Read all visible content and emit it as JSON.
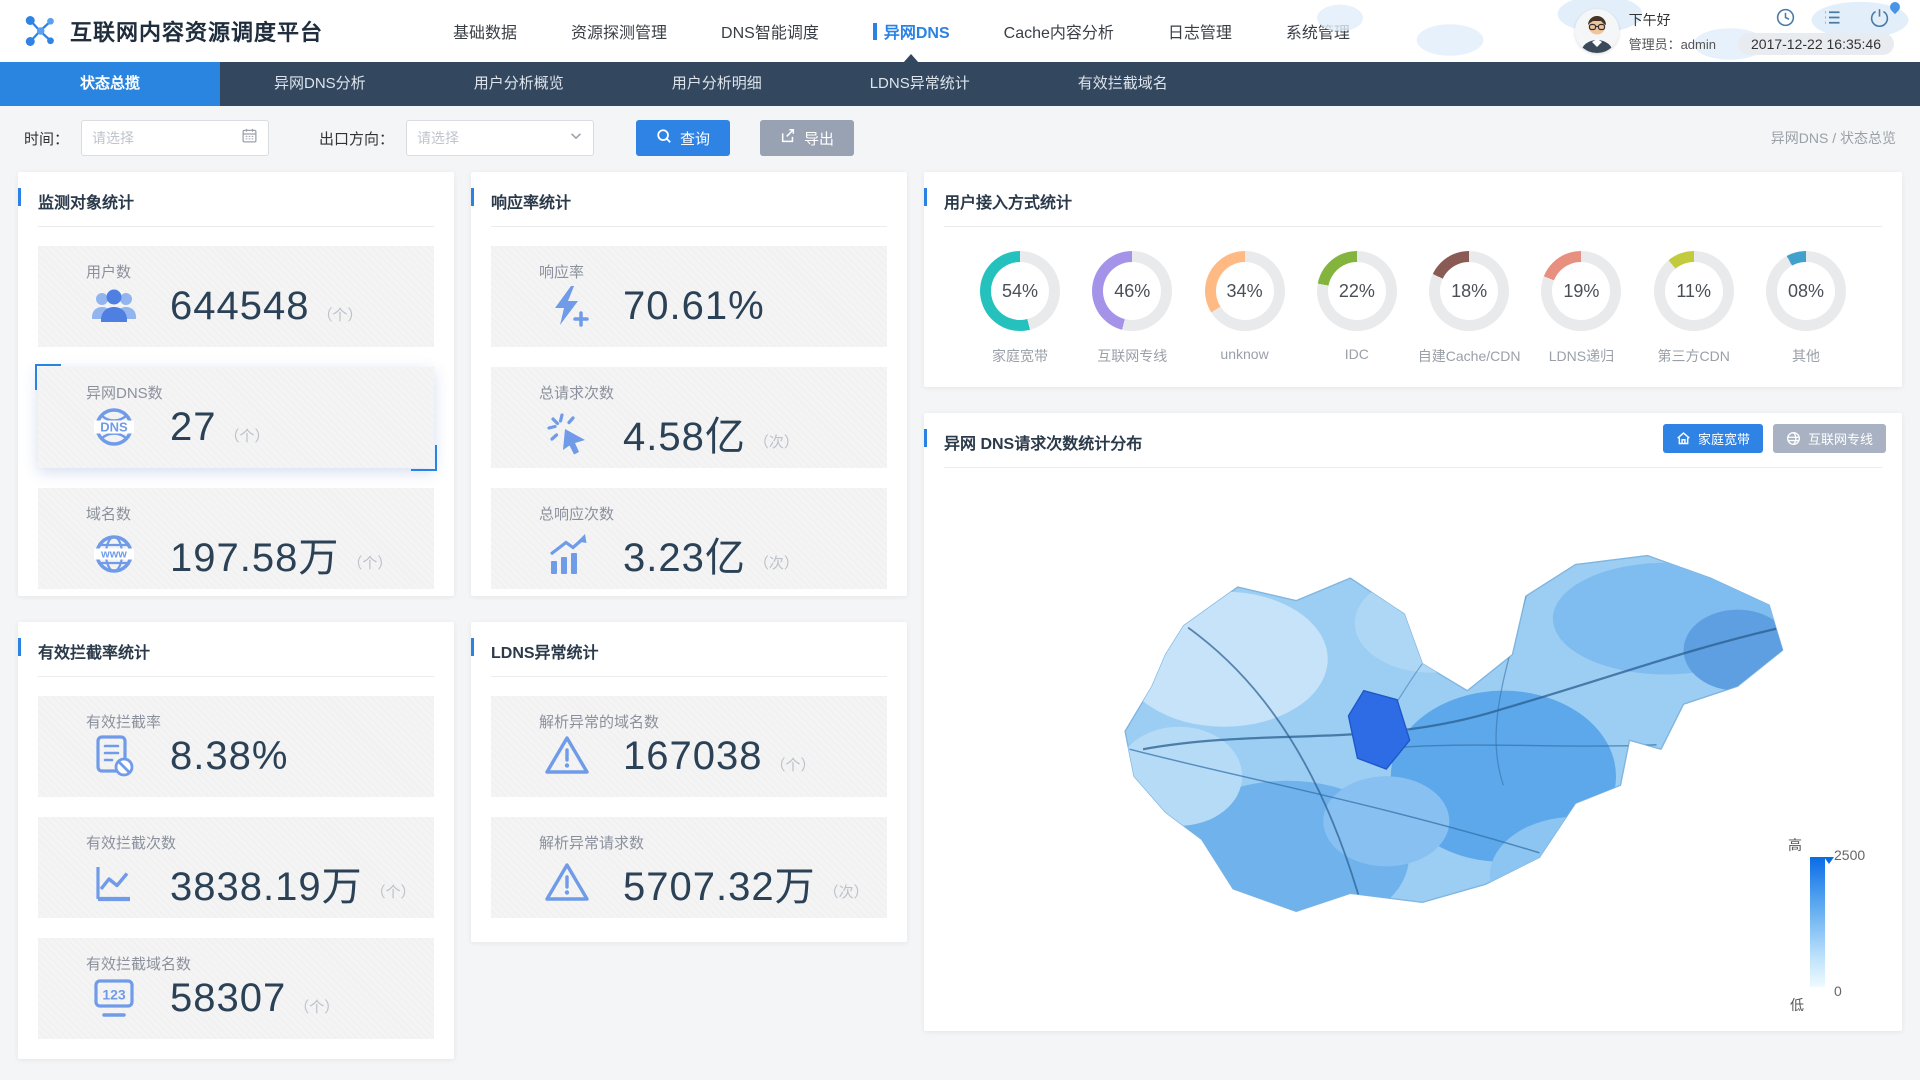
{
  "header": {
    "app_title": "互联网内容资源调度平台",
    "nav_items": [
      {
        "label": "基础数据",
        "active": false
      },
      {
        "label": "资源探测管理",
        "active": false
      },
      {
        "label": "DNS智能调度",
        "active": false
      },
      {
        "label": "异网DNS",
        "active": true
      },
      {
        "label": "Cache内容分析",
        "active": false
      },
      {
        "label": "日志管理",
        "active": false
      },
      {
        "label": "系统管理",
        "active": false
      }
    ],
    "greeting": "下午好",
    "user_label": "管理员：admin",
    "datetime": "2017-12-22 16:35:46"
  },
  "subnav": {
    "tabs": [
      {
        "label": "状态总揽",
        "active": true
      },
      {
        "label": "异网DNS分析",
        "active": false
      },
      {
        "label": "用户分析概览",
        "active": false
      },
      {
        "label": "用户分析明细",
        "active": false
      },
      {
        "label": "LDNS异常统计",
        "active": false
      },
      {
        "label": "有效拦截域名",
        "active": false
      }
    ]
  },
  "filterbar": {
    "time_label": "时间：",
    "time_placeholder": "请选择",
    "direction_label": "出口方向：",
    "direction_placeholder": "请选择",
    "query_button": "查询",
    "export_button": "导出",
    "breadcrumb": "异网DNS / 状态总览"
  },
  "cards": {
    "monitor": {
      "title": "监测对象统计",
      "stats": [
        {
          "label": "用户数",
          "value": "644548",
          "unit": "（个）",
          "icon": "users-icon",
          "selected": false
        },
        {
          "label": "异网DNS数",
          "value": "27",
          "unit": "（个）",
          "icon": "dns-globe-icon",
          "selected": true
        },
        {
          "label": "域名数",
          "value": "197.58万",
          "unit": "（个）",
          "icon": "www-globe-icon",
          "selected": false
        }
      ]
    },
    "response": {
      "title": "响应率统计",
      "stats": [
        {
          "label": "响应率",
          "value": "70.61%",
          "unit": "",
          "icon": "lightning-plus-icon",
          "selected": false
        },
        {
          "label": "总请求次数",
          "value": "4.58亿",
          "unit": "（次）",
          "icon": "click-icon",
          "selected": false
        },
        {
          "label": "总响应次数",
          "value": "3.23亿",
          "unit": "（次）",
          "icon": "trend-up-icon",
          "selected": false
        }
      ]
    },
    "intercept": {
      "title": "有效拦截率统计",
      "stats": [
        {
          "label": "有效拦截率",
          "value": "8.38%",
          "unit": "",
          "icon": "doc-block-icon",
          "selected": false
        },
        {
          "label": "有效拦截次数",
          "value": "3838.19万",
          "unit": "（个）",
          "icon": "line-chart-icon",
          "selected": false
        },
        {
          "label": "有效拦截域名数",
          "value": "58307",
          "unit": "（个）",
          "icon": "monitor-123-icon",
          "selected": false
        }
      ]
    },
    "ldns": {
      "title": "LDNS异常统计",
      "stats": [
        {
          "label": "解析异常的域名数",
          "value": "167038",
          "unit": "（个）",
          "icon": "warning-icon",
          "selected": false
        },
        {
          "label": "解析异常请求数",
          "value": "5707.32万",
          "unit": "（次）",
          "icon": "warning-icon",
          "selected": false
        }
      ]
    },
    "access": {
      "title": "用户接入方式统计",
      "gauges": [
        {
          "label": "家庭宽带",
          "percent_text": "54%",
          "value": 54,
          "color": "#25c1bd"
        },
        {
          "label": "互联网专线",
          "percent_text": "46%",
          "value": 46,
          "color": "#a493e8"
        },
        {
          "label": "unknow",
          "percent_text": "34%",
          "value": 34,
          "color": "#ffba84"
        },
        {
          "label": "IDC",
          "percent_text": "22%",
          "value": 22,
          "color": "#83b43d"
        },
        {
          "label": "自建Cache/CDN",
          "percent_text": "18%",
          "value": 18,
          "color": "#8a5a55"
        },
        {
          "label": "LDNS递归",
          "percent_text": "19%",
          "value": 19,
          "color": "#e8907f"
        },
        {
          "label": "第三方CDN",
          "percent_text": "11%",
          "value": 11,
          "color": "#c1cb3d"
        },
        {
          "label": "其他",
          "percent_text": "08%",
          "value": 8,
          "color": "#40a1cd"
        }
      ]
    },
    "map": {
      "title": "异网 DNS请求次数统计分布",
      "buttons": [
        {
          "label": "家庭宽带",
          "icon": "home-icon",
          "active": true
        },
        {
          "label": "互联网专线",
          "icon": "globe-e-icon",
          "active": false
        }
      ],
      "legend": {
        "high_label": "高",
        "low_label": "低",
        "max": "2500",
        "min": "0"
      }
    }
  },
  "chart_data": [
    {
      "type": "pie",
      "subtype": "ring-gauges",
      "title": "用户接入方式统计",
      "series": [
        {
          "name": "家庭宽带",
          "value": 54
        },
        {
          "name": "互联网专线",
          "value": 46
        },
        {
          "name": "unknow",
          "value": 34
        },
        {
          "name": "IDC",
          "value": 22
        },
        {
          "name": "自建Cache/CDN",
          "value": 18
        },
        {
          "name": "LDNS递归",
          "value": 19
        },
        {
          "name": "第三方CDN",
          "value": 11
        },
        {
          "name": "其他",
          "value": 8
        }
      ],
      "unit": "%",
      "legend_position": "below-each-gauge"
    },
    {
      "type": "heatmap",
      "subtype": "choropleth-map",
      "title": "异网 DNS请求次数统计分布",
      "active_layer": "家庭宽带",
      "layers": [
        "家庭宽带",
        "互联网专线"
      ],
      "colorbar": {
        "min": 0,
        "max": 2500,
        "min_label": "低",
        "max_label": "高"
      }
    }
  ]
}
